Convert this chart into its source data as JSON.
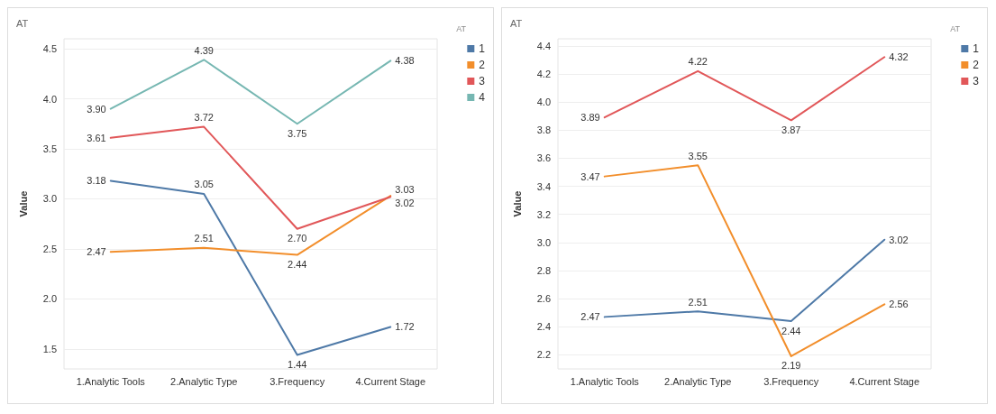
{
  "chart_data": [
    {
      "type": "line",
      "title": "AT",
      "ylabel": "Value",
      "legend_title": "AT",
      "categories": [
        "1.Analytic Tools",
        "2.Analytic Type",
        "3.Frequency",
        "4.Current Stage"
      ],
      "ylim": [
        1.3,
        4.6
      ],
      "yticks": [
        {
          "value": 1.5,
          "label": "1.5"
        },
        {
          "value": 2,
          "label": "2.0"
        },
        {
          "value": 2.5,
          "label": "2.5"
        },
        {
          "value": 3,
          "label": "3.0"
        },
        {
          "value": 3.5,
          "label": "3.5"
        },
        {
          "value": 4,
          "label": "4.0"
        },
        {
          "value": 4.5,
          "label": "4.5"
        }
      ],
      "grid": "y",
      "legend": "top right",
      "marker": "none",
      "line_style": "solid",
      "series": [
        {
          "name": "1",
          "color": "#4e79a7",
          "values": [
            3.18,
            3.05,
            1.44,
            1.72
          ],
          "value_labels": [
            "3.18",
            "3.05",
            "1.44",
            "1.72"
          ]
        },
        {
          "name": "2",
          "color": "#f28e2b",
          "values": [
            2.47,
            2.51,
            2.44,
            3.03
          ],
          "value_labels": [
            "2.47",
            "2.51",
            "2.44",
            "3.03"
          ]
        },
        {
          "name": "3",
          "color": "#e15759",
          "values": [
            3.61,
            3.72,
            2.7,
            3.02
          ],
          "value_labels": [
            "3.61",
            "3.72",
            "2.70",
            "3.02"
          ]
        },
        {
          "name": "4",
          "color": "#76b7b2",
          "values": [
            3.9,
            4.39,
            3.75,
            4.38
          ],
          "value_labels": [
            "3.90",
            "4.39",
            "3.75",
            "4.38"
          ]
        }
      ]
    },
    {
      "type": "line",
      "title": "AT",
      "ylabel": "Value",
      "legend_title": "AT",
      "categories": [
        "1.Analytic Tools",
        "2.Analytic Type",
        "3.Frequency",
        "4.Current Stage"
      ],
      "ylim": [
        2.1,
        4.45
      ],
      "yticks": [
        {
          "value": 2.2,
          "label": "2.2"
        },
        {
          "value": 2.4,
          "label": "2.4"
        },
        {
          "value": 2.6,
          "label": "2.6"
        },
        {
          "value": 2.8,
          "label": "2.8"
        },
        {
          "value": 3,
          "label": "3.0"
        },
        {
          "value": 3.2,
          "label": "3.2"
        },
        {
          "value": 3.4,
          "label": "3.4"
        },
        {
          "value": 3.6,
          "label": "3.6"
        },
        {
          "value": 3.8,
          "label": "3.8"
        },
        {
          "value": 4,
          "label": "4.0"
        },
        {
          "value": 4.2,
          "label": "4.2"
        },
        {
          "value": 4.4,
          "label": "4.4"
        }
      ],
      "grid": "y",
      "legend": "top right",
      "marker": "none",
      "line_style": "solid",
      "series": [
        {
          "name": "1",
          "color": "#4e79a7",
          "values": [
            2.47,
            2.51,
            2.44,
            3.02
          ],
          "value_labels": [
            "2.47",
            "2.51",
            "2.44",
            "3.02"
          ]
        },
        {
          "name": "2",
          "color": "#f28e2b",
          "values": [
            3.47,
            3.55,
            2.19,
            2.56
          ],
          "value_labels": [
            "3.47",
            "3.55",
            "2.19",
            "2.56"
          ]
        },
        {
          "name": "3",
          "color": "#e15759",
          "values": [
            3.89,
            4.22,
            3.87,
            4.32
          ],
          "value_labels": [
            "3.89",
            "4.22",
            "3.87",
            "4.32"
          ]
        }
      ]
    }
  ]
}
